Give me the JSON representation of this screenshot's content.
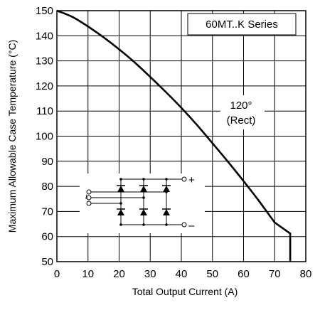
{
  "chart_data": {
    "type": "line",
    "xlabel": "Total Output Current (A)",
    "ylabel": "Maximum Allowable Case Temperature (°C)",
    "xlim": [
      0,
      80
    ],
    "ylim": [
      50,
      150
    ],
    "x_ticks": [
      "0",
      "10",
      "20",
      "30",
      "40",
      "50",
      "60",
      "70",
      "80"
    ],
    "y_ticks": [
      "50",
      "60",
      "70",
      "80",
      "90",
      "100",
      "110",
      "120",
      "130",
      "140",
      "150"
    ],
    "grid": true,
    "series": [
      {
        "x": [
          0,
          5,
          10,
          15,
          20,
          25,
          30,
          35,
          40,
          45,
          50,
          55,
          60,
          65,
          70,
          75,
          75
        ],
        "y": [
          150,
          147.5,
          143.7,
          139.4,
          134.6,
          129.4,
          123.6,
          117.6,
          111.3,
          104.5,
          97.2,
          89.8,
          82.1,
          74.1,
          65.6,
          61.2,
          50
        ]
      }
    ],
    "annotations": {
      "series_box": "60MT..K Series",
      "conduction_angle": "120°",
      "conduction_type": "(Rect)",
      "plus": "+",
      "minus": "–",
      "ac_symbol": "~"
    }
  }
}
